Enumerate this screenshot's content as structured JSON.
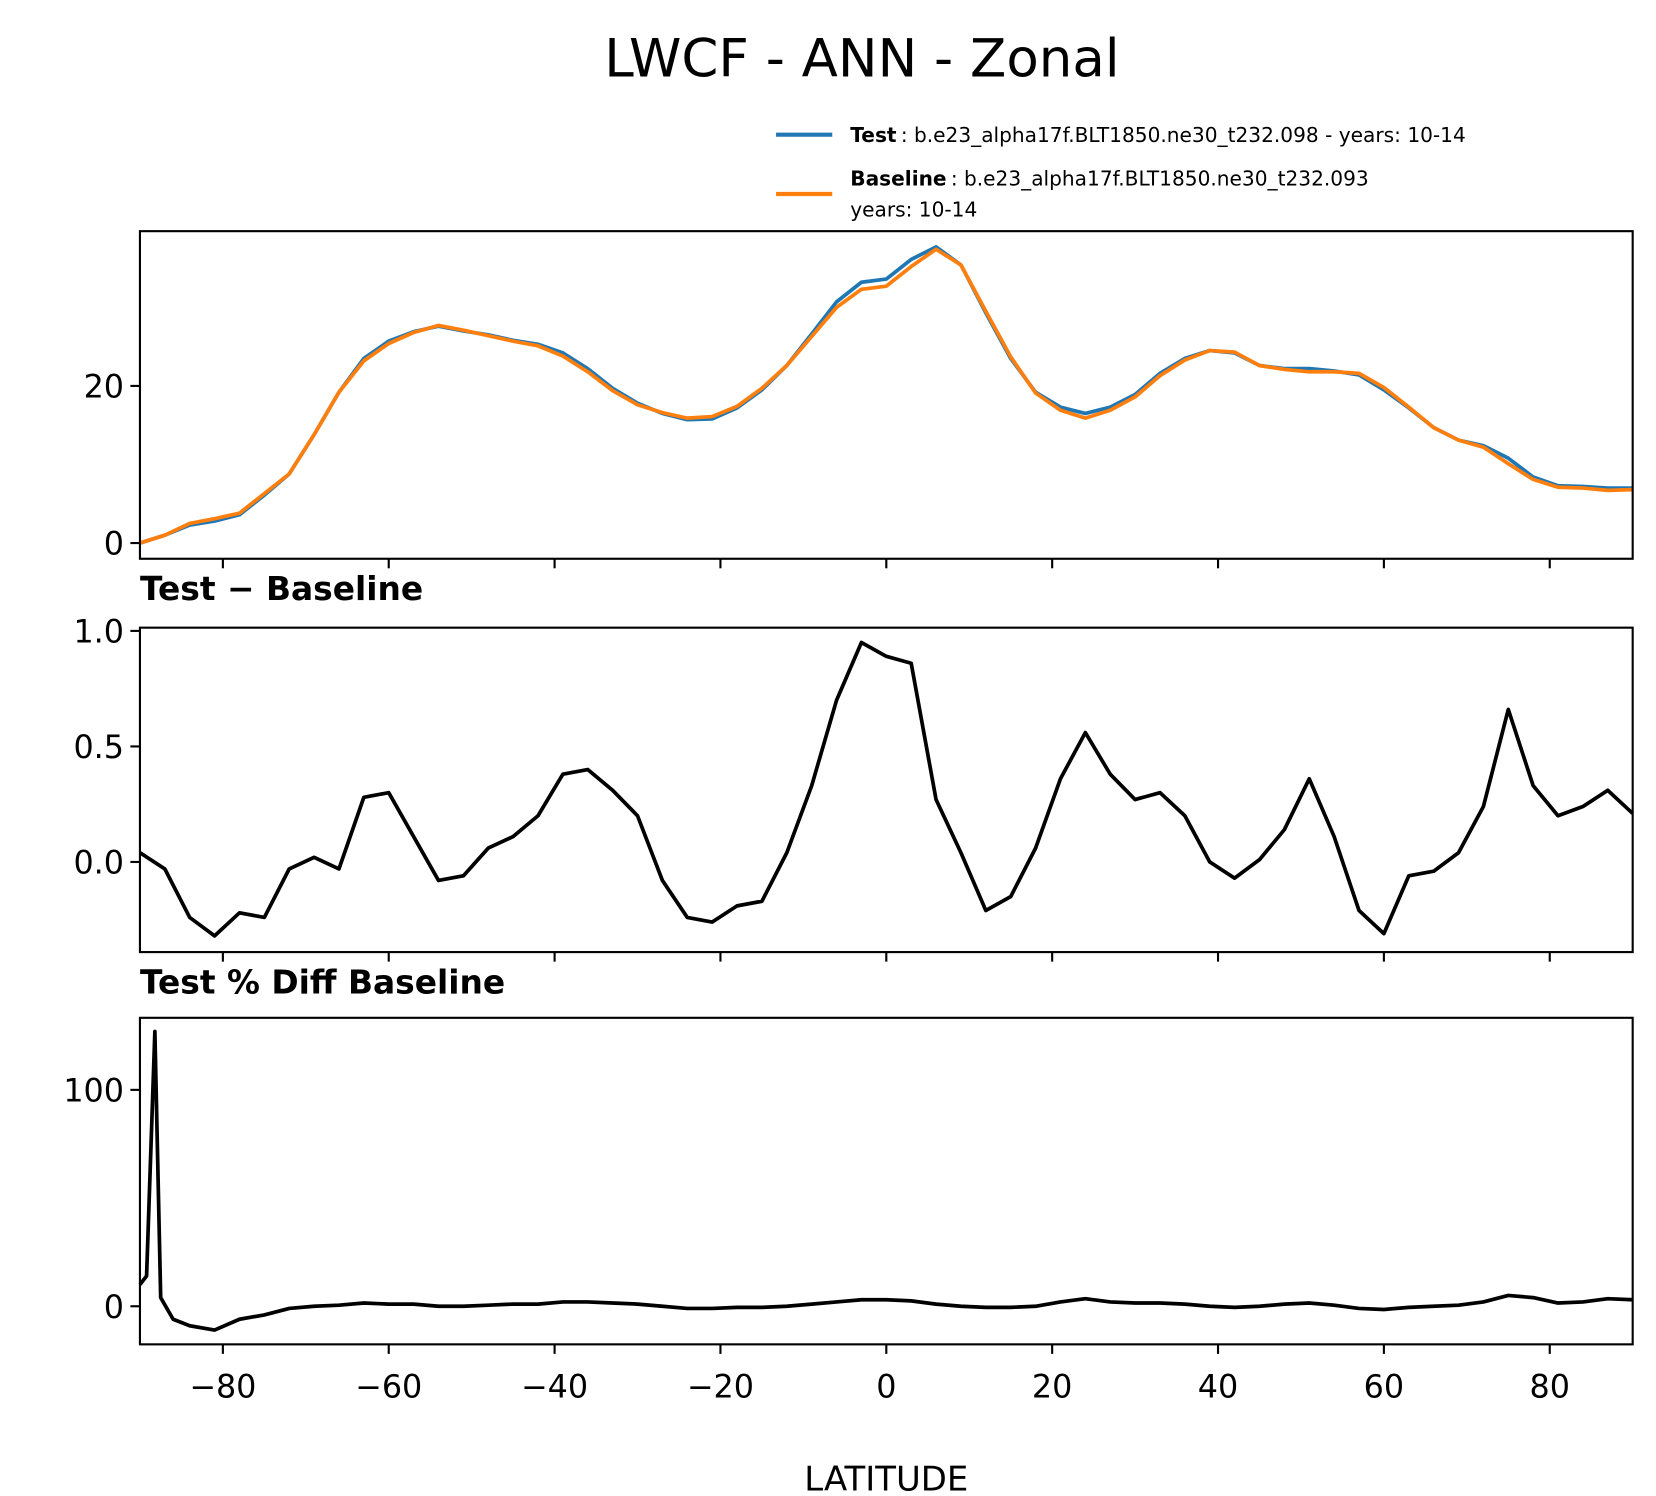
{
  "chart_data": [
    {
      "type": "line",
      "title": "LWCF - ANN - Zonal",
      "x": [
        -90,
        -87,
        -84,
        -81,
        -78,
        -75,
        -72,
        -69,
        -66,
        -63,
        -60,
        -57,
        -54,
        -51,
        -48,
        -45,
        -42,
        -39,
        -36,
        -33,
        -30,
        -27,
        -24,
        -21,
        -18,
        -15,
        -12,
        -9,
        -6,
        -3,
        0,
        3,
        6,
        9,
        12,
        15,
        18,
        21,
        24,
        27,
        30,
        33,
        36,
        39,
        42,
        45,
        48,
        51,
        54,
        57,
        60,
        63,
        66,
        69,
        72,
        75,
        78,
        81,
        84,
        87,
        90
      ],
      "series": [
        {
          "name": "Test",
          "description": [
            ": b.e23_alpha17f.BLT1850.ne30_t232.098 - years: 10-14"
          ],
          "color": "#1f77b4",
          "values": [
            0,
            1.0,
            2.3,
            2.8,
            3.6,
            6.1,
            8.8,
            13.8,
            19.2,
            23.5,
            25.7,
            26.9,
            27.6,
            27.0,
            26.5,
            25.8,
            25.3,
            24.2,
            22.2,
            19.7,
            17.8,
            16.5,
            15.7,
            15.8,
            17.2,
            19.5,
            22.6,
            26.6,
            30.7,
            33.2,
            33.6,
            36.1,
            37.7,
            35.4,
            29.3,
            23.5,
            19.2,
            17.3,
            16.5,
            17.3,
            18.9,
            21.6,
            23.5,
            24.5,
            24.2,
            22.6,
            22.2,
            22.2,
            21.9,
            21.4,
            19.5,
            17.2,
            14.7,
            13.1,
            12.4,
            10.8,
            8.4,
            7.3,
            7.2,
            7.0,
            7.0
          ]
        },
        {
          "name": "Baseline",
          "description": [
            ": b.e23_alpha17f.BLT1850.ne30_t232.093",
            "years: 10-14"
          ],
          "color": "#ff7f0e",
          "values": [
            0.0,
            1.0,
            2.5,
            3.1,
            3.8,
            6.3,
            8.8,
            13.8,
            19.2,
            23.2,
            25.4,
            26.8,
            27.7,
            27.1,
            26.4,
            25.7,
            25.1,
            23.8,
            21.8,
            19.4,
            17.6,
            16.6,
            15.9,
            16.1,
            17.4,
            19.7,
            22.6,
            26.3,
            30.0,
            32.3,
            32.7,
            35.2,
            37.4,
            35.4,
            29.5,
            23.7,
            19.1,
            16.9,
            15.9,
            16.9,
            18.6,
            21.3,
            23.3,
            24.5,
            24.3,
            22.6,
            22.1,
            21.8,
            21.8,
            21.6,
            19.8,
            17.3,
            14.7,
            13.1,
            12.2,
            10.1,
            8.1,
            7.1,
            7.0,
            6.7,
            6.8
          ]
        }
      ],
      "xlim": [
        -90,
        90
      ],
      "ylim": [
        -2.0,
        39.7
      ],
      "yticks": [
        0,
        20
      ]
    },
    {
      "type": "line",
      "title": "Test − Baseline",
      "x": [
        -90,
        -87,
        -84,
        -81,
        -78,
        -75,
        -72,
        -69,
        -66,
        -63,
        -60,
        -57,
        -54,
        -51,
        -48,
        -45,
        -42,
        -39,
        -36,
        -33,
        -30,
        -27,
        -24,
        -21,
        -18,
        -15,
        -12,
        -9,
        -6,
        -3,
        0,
        3,
        6,
        9,
        12,
        15,
        18,
        21,
        24,
        27,
        30,
        33,
        36,
        39,
        42,
        45,
        48,
        51,
        54,
        57,
        60,
        63,
        66,
        69,
        72,
        75,
        78,
        81,
        84,
        87,
        90
      ],
      "color": "#000000",
      "values": [
        0.04,
        -0.03,
        -0.24,
        -0.32,
        -0.22,
        -0.24,
        -0.03,
        0.02,
        -0.03,
        0.28,
        0.3,
        0.11,
        -0.08,
        -0.06,
        0.06,
        0.11,
        0.2,
        0.38,
        0.4,
        0.31,
        0.2,
        -0.08,
        -0.24,
        -0.26,
        -0.19,
        -0.17,
        0.04,
        0.33,
        0.7,
        0.95,
        0.89,
        0.86,
        0.27,
        0.04,
        -0.21,
        -0.15,
        0.06,
        0.36,
        0.56,
        0.38,
        0.27,
        0.3,
        0.2,
        0.0,
        -0.07,
        0.01,
        0.14,
        0.36,
        0.11,
        -0.21,
        -0.31,
        -0.06,
        -0.04,
        0.04,
        0.24,
        0.66,
        0.33,
        0.2,
        0.24,
        0.31,
        0.21
      ],
      "xlim": [
        -90,
        90
      ],
      "ylim": [
        -0.39,
        1.014
      ],
      "yticks": [
        {
          "value": 0,
          "label": "0.0"
        },
        0.5,
        {
          "value": 1,
          "label": "1.0"
        }
      ]
    },
    {
      "type": "line",
      "title": "Test % Diff Baseline",
      "xlabel": "LATITUDE",
      "x": [
        -90,
        -89.2,
        -88.2,
        -87.5,
        -86,
        -84,
        -81,
        -78,
        -75,
        -72,
        -69,
        -66,
        -63,
        -60,
        -57,
        -54,
        -51,
        -48,
        -45,
        -42,
        -39,
        -36,
        -33,
        -30,
        -27,
        -24,
        -21,
        -18,
        -15,
        -12,
        -9,
        -6,
        -3,
        0,
        3,
        6,
        9,
        12,
        15,
        18,
        21,
        24,
        27,
        30,
        33,
        36,
        39,
        42,
        45,
        48,
        51,
        54,
        57,
        60,
        63,
        66,
        69,
        72,
        75,
        78,
        81,
        84,
        87,
        90
      ],
      "color": "#000000",
      "values": [
        10,
        14,
        127,
        4,
        -6,
        -9,
        -11,
        -6,
        -4,
        -1,
        0,
        0.5,
        1.5,
        1,
        1,
        0,
        0,
        0.5,
        1,
        1,
        2,
        2,
        1.5,
        1,
        0,
        -1,
        -1,
        -0.5,
        -0.5,
        0,
        1,
        2,
        3,
        3,
        2.5,
        1,
        0,
        -0.5,
        -0.5,
        0,
        2,
        3.5,
        2,
        1.5,
        1.5,
        1,
        0,
        -0.5,
        0,
        1,
        1.5,
        0.5,
        -1,
        -1.5,
        -0.5,
        0,
        0.5,
        2,
        5,
        4,
        1.5,
        2,
        3.5,
        3
      ],
      "xlim": [
        -90,
        90
      ],
      "ylim": [
        -17.6,
        133.3
      ],
      "yticks": [
        0,
        100
      ],
      "xticks": [
        {
          "value": -80,
          "label": "−80"
        },
        {
          "value": -60,
          "label": "−60"
        },
        {
          "value": -40,
          "label": "−40"
        },
        {
          "value": -20,
          "label": "−20"
        },
        0,
        20,
        40,
        60,
        80
      ]
    }
  ]
}
